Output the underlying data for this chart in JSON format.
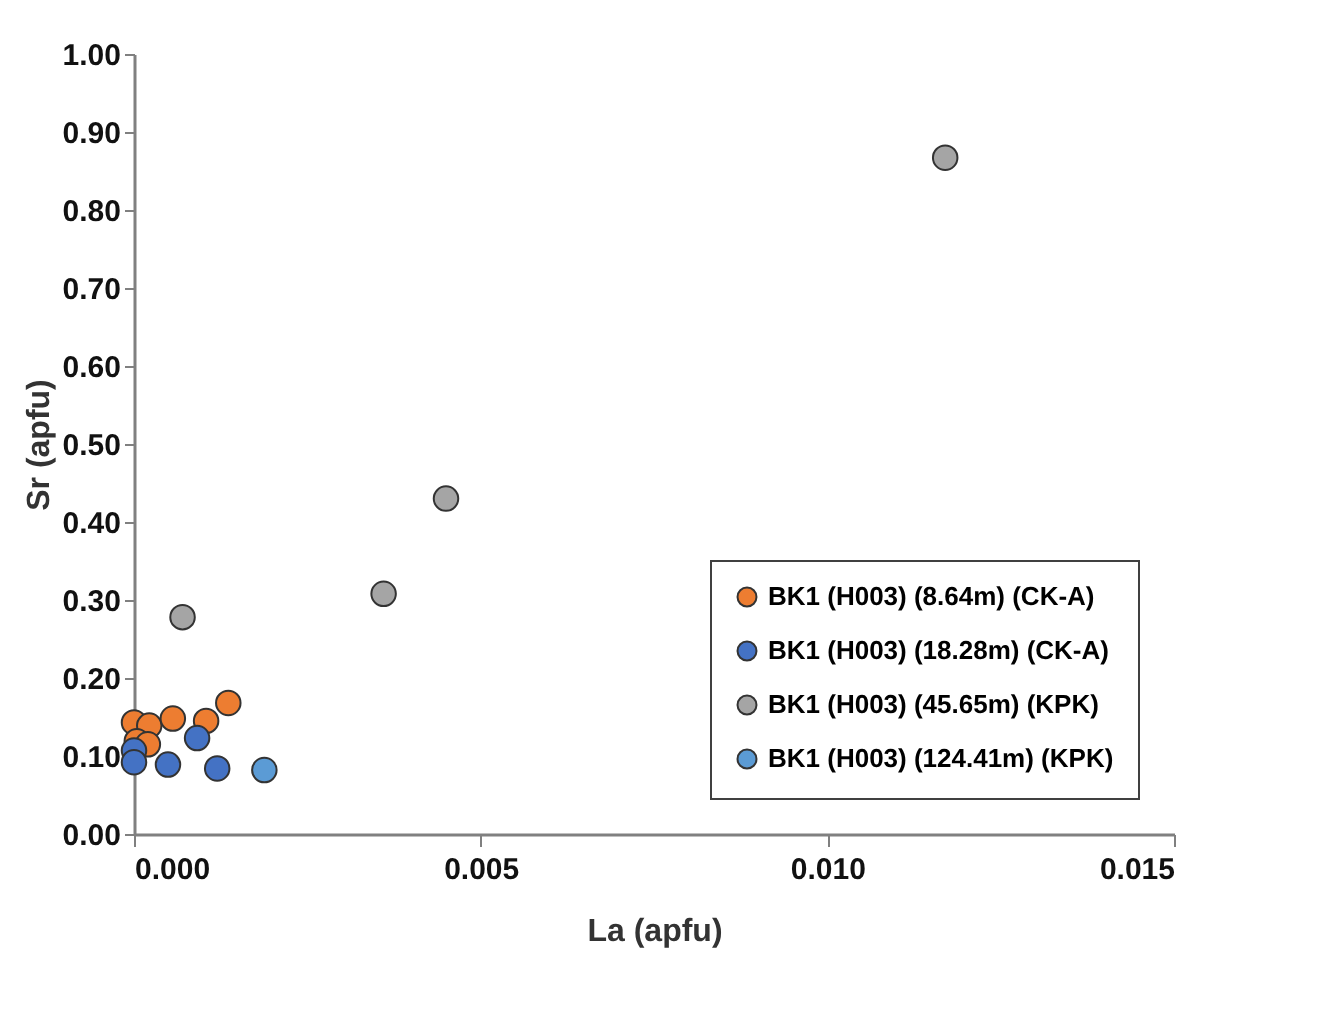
{
  "chart_data": {
    "type": "scatter",
    "xlabel": "La (apfu)",
    "ylabel": "Sr (apfu)",
    "xlim": [
      0,
      0.015
    ],
    "ylim": [
      0,
      1
    ],
    "xticks": [
      {
        "value": 0,
        "label": "0.000"
      },
      {
        "value": 0.005,
        "label": "0.005"
      },
      {
        "value": 0.01,
        "label": "0.010"
      },
      {
        "value": 0.015,
        "label": "0.015"
      }
    ],
    "yticks": [
      {
        "value": 0,
        "label": "0.00"
      },
      {
        "value": 0.1,
        "label": "0.10"
      },
      {
        "value": 0.2,
        "label": "0.20"
      },
      {
        "value": 0.3,
        "label": "0.30"
      },
      {
        "value": 0.4,
        "label": "0.40"
      },
      {
        "value": 0.5,
        "label": "0.50"
      },
      {
        "value": 0.6,
        "label": "0.60"
      },
      {
        "value": 0.7,
        "label": "0.70"
      },
      {
        "value": 0.8,
        "label": "0.80"
      },
      {
        "value": 0.9,
        "label": "0.90"
      },
      {
        "value": 1,
        "label": "1.00"
      }
    ],
    "grid": false,
    "legend": "bottom right",
    "marker": "circle",
    "series": [
      {
        "name": "BK1 (H003) (8.64m) (CK-A)",
        "color": "#ed7d31",
        "x": [
          0,
          0.00022,
          0.00056,
          0.00104,
          0.00136,
          4e-05,
          0.0002
        ],
        "values": [
          0.143,
          0.139,
          0.148,
          0.145,
          0.168,
          0.119,
          0.115
        ]
      },
      {
        "name": "BK1 (H003) (18.28m) (CK-A)",
        "color": "#4472c4",
        "x": [
          0,
          0,
          0.00049,
          0.00091,
          0.0012
        ],
        "values": [
          0.107,
          0.092,
          0.089,
          0.123,
          0.084
        ]
      },
      {
        "name": "BK1 (H003) (45.65m) (KPK)",
        "color": "#a5a5a5",
        "x": [
          0.0007,
          0.0036,
          0.0045,
          0.0117
        ],
        "values": [
          0.278,
          0.308,
          0.43,
          0.867
        ]
      },
      {
        "name": "BK1 (H003) (124.41m) (KPK)",
        "color": "#5b9bd5",
        "x": [
          0.00188
        ],
        "values": [
          0.082
        ]
      }
    ]
  }
}
